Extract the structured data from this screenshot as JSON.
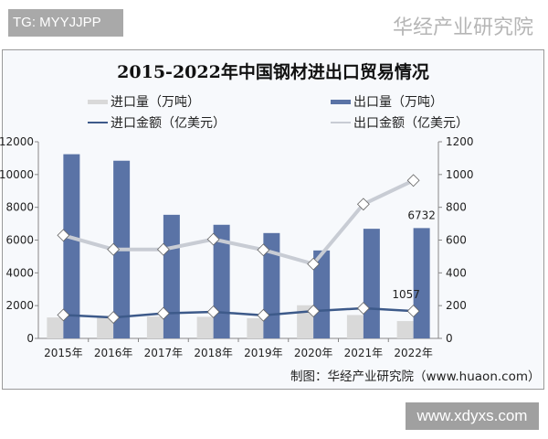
{
  "overlay_label": "TG: MYYJJPP",
  "watermark_site": "www.xdyxs.com",
  "watermark_logo": "华经产业研究院",
  "chart_data": {
    "type": "bar+line",
    "title": "2015-2022年中国钢材进出口贸易情况",
    "categories": [
      "2015年",
      "2016年",
      "2017年",
      "2018年",
      "2019年",
      "2020年",
      "2021年",
      "2022年"
    ],
    "left_axis": {
      "range": [
        0,
        12000
      ],
      "ticks": [
        "0",
        "2000",
        "4000",
        "6000",
        "8000",
        "10000",
        "12000"
      ]
    },
    "right_axis": {
      "range": [
        0,
        1200
      ],
      "ticks": [
        "0",
        "200",
        "400",
        "600",
        "800",
        "1000",
        "1200"
      ]
    },
    "series": [
      {
        "name": "进口量（万吨）",
        "type": "bar",
        "axis": "left",
        "color": "#d9d9d9",
        "values": [
          1278,
          1321,
          1330,
          1317,
          1230,
          2023,
          1427,
          1057
        ]
      },
      {
        "name": "出口量（万吨）",
        "type": "bar",
        "axis": "left",
        "color": "#5a73a6",
        "values": [
          11240,
          10843,
          7543,
          6934,
          6429,
          5367,
          6690,
          6732
        ]
      },
      {
        "name": "进口金额（亿美元）",
        "type": "line",
        "axis": "right",
        "color": "#3d5a8a",
        "values": [
          143,
          128,
          153,
          162,
          141,
          167,
          184,
          167
        ]
      },
      {
        "name": "出口金额（亿美元）",
        "type": "line",
        "axis": "right",
        "color": "#c8ccd4",
        "values": [
          629,
          543,
          543,
          605,
          540,
          454,
          819,
          964
        ]
      }
    ],
    "data_labels": [
      {
        "series": "出口量（万吨）",
        "category": "2022年",
        "text": "6732"
      },
      {
        "series": "进口量（万吨）",
        "category": "2022年",
        "text": "1057"
      }
    ],
    "legend_position": "top",
    "grid": false,
    "source": "制图：华经产业研究院（www.huaon.com）"
  }
}
